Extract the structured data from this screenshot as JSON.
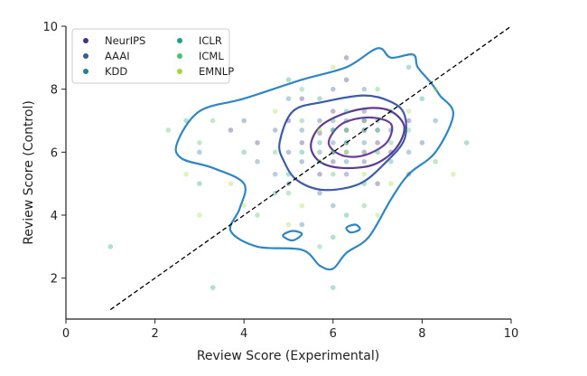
{
  "chart_data": {
    "type": "scatter",
    "xlabel": "Review Score (Experimental)",
    "ylabel": "Review Score (Control)",
    "xlim": [
      0,
      10
    ],
    "ylim": [
      0.7,
      10
    ],
    "xticks": [
      "0",
      "2",
      "4",
      "6",
      "8",
      "10"
    ],
    "yticks": [
      "2",
      "4",
      "6",
      "8",
      "10"
    ],
    "legend_position": "top-left",
    "series": [
      {
        "name": "NeurIPS",
        "color": "#46327e",
        "points": [
          [
            5.3,
            6.3
          ],
          [
            5.7,
            6.6
          ],
          [
            6.0,
            6.0
          ],
          [
            6.3,
            6.7
          ],
          [
            6.7,
            7.0
          ],
          [
            7.0,
            6.3
          ],
          [
            7.3,
            6.0
          ],
          [
            5.0,
            7.0
          ],
          [
            6.0,
            7.3
          ],
          [
            6.7,
            6.0
          ],
          [
            4.3,
            6.3
          ],
          [
            7.7,
            7.0
          ],
          [
            5.7,
            5.3
          ],
          [
            6.3,
            8.3
          ],
          [
            3.7,
            6.7
          ],
          [
            6.3,
            9.0
          ],
          [
            7.0,
            5.0
          ],
          [
            5.3,
            7.7
          ],
          [
            6.0,
            5.7
          ],
          [
            6.7,
            6.7
          ]
        ]
      },
      {
        "name": "AAAI",
        "color": "#365c8d",
        "points": [
          [
            5.0,
            6.0
          ],
          [
            5.7,
            7.0
          ],
          [
            6.3,
            6.3
          ],
          [
            6.0,
            6.7
          ],
          [
            7.0,
            6.7
          ],
          [
            6.7,
            5.7
          ],
          [
            4.7,
            6.7
          ],
          [
            7.3,
            6.7
          ],
          [
            5.3,
            5.7
          ],
          [
            6.3,
            5.3
          ],
          [
            4.0,
            7.0
          ],
          [
            8.0,
            6.3
          ],
          [
            6.0,
            8.0
          ],
          [
            5.7,
            4.7
          ],
          [
            7.7,
            5.3
          ],
          [
            6.7,
            7.3
          ],
          [
            5.0,
            5.0
          ],
          [
            6.3,
            7.0
          ]
        ]
      },
      {
        "name": "KDD",
        "color": "#277f8e",
        "points": [
          [
            5.3,
            6.7
          ],
          [
            6.0,
            6.3
          ],
          [
            6.7,
            6.3
          ],
          [
            5.7,
            6.0
          ],
          [
            7.0,
            7.0
          ],
          [
            6.3,
            5.7
          ],
          [
            4.3,
            5.7
          ],
          [
            7.3,
            7.3
          ],
          [
            5.0,
            7.7
          ],
          [
            6.0,
            4.3
          ],
          [
            6.7,
            8.0
          ],
          [
            3.0,
            6.0
          ],
          [
            8.3,
            7.0
          ],
          [
            5.3,
            3.7
          ],
          [
            6.3,
            6.0
          ],
          [
            7.7,
            6.0
          ],
          [
            6.0,
            7.0
          ],
          [
            4.7,
            5.3
          ]
        ]
      },
      {
        "name": "ICLR",
        "color": "#1fa187",
        "points": [
          [
            6.0,
            6.7
          ],
          [
            6.3,
            6.3
          ],
          [
            6.7,
            6.7
          ],
          [
            5.7,
            6.3
          ],
          [
            7.0,
            6.0
          ],
          [
            5.3,
            6.0
          ],
          [
            6.3,
            7.3
          ],
          [
            5.0,
            5.3
          ],
          [
            7.3,
            5.7
          ],
          [
            4.0,
            6.0
          ],
          [
            6.7,
            5.0
          ],
          [
            5.7,
            7.7
          ],
          [
            8.0,
            7.7
          ],
          [
            4.7,
            4.7
          ],
          [
            6.0,
            3.3
          ],
          [
            3.0,
            5.0
          ],
          [
            1.0,
            3.0
          ],
          [
            3.3,
            1.7
          ],
          [
            9.0,
            6.3
          ],
          [
            7.7,
            8.7
          ],
          [
            6.0,
            1.7
          ],
          [
            5.0,
            8.3
          ],
          [
            2.7,
            7.0
          ],
          [
            6.3,
            4.0
          ]
        ]
      },
      {
        "name": "ICML",
        "color": "#4ac16d",
        "points": [
          [
            6.0,
            6.0
          ],
          [
            6.7,
            7.0
          ],
          [
            6.3,
            6.7
          ],
          [
            5.7,
            5.7
          ],
          [
            7.0,
            6.7
          ],
          [
            5.3,
            7.0
          ],
          [
            6.0,
            5.3
          ],
          [
            7.3,
            6.3
          ],
          [
            4.7,
            6.0
          ],
          [
            5.0,
            4.7
          ],
          [
            7.7,
            6.7
          ],
          [
            3.3,
            7.0
          ],
          [
            5.7,
            3.0
          ],
          [
            6.7,
            4.3
          ],
          [
            4.3,
            4.0
          ],
          [
            3.0,
            6.3
          ],
          [
            7.0,
            8.0
          ],
          [
            2.3,
            6.7
          ],
          [
            5.3,
            8.0
          ],
          [
            8.3,
            5.7
          ]
        ]
      },
      {
        "name": "EMNLP",
        "color": "#a0da39",
        "points": [
          [
            6.3,
            6.0
          ],
          [
            5.7,
            6.7
          ],
          [
            6.7,
            5.3
          ],
          [
            4.0,
            4.3
          ],
          [
            3.7,
            5.0
          ],
          [
            7.3,
            5.0
          ],
          [
            5.0,
            3.7
          ],
          [
            8.7,
            5.3
          ],
          [
            3.0,
            4.0
          ],
          [
            6.0,
            8.7
          ],
          [
            4.7,
            7.3
          ],
          [
            7.0,
            4.0
          ],
          [
            2.7,
            5.3
          ],
          [
            5.3,
            4.3
          ],
          [
            7.7,
            7.3
          ],
          [
            8.3,
            8.0
          ]
        ]
      }
    ],
    "reference_line": {
      "x": [
        1,
        10
      ],
      "y": [
        1,
        10
      ],
      "style": "dashed",
      "color": "#000000"
    },
    "contours": [
      {
        "level": "outer",
        "color": "#2f86c4",
        "points": [
          [
            2.5,
            6.3
          ],
          [
            3.0,
            7.3
          ],
          [
            4.0,
            7.7
          ],
          [
            5.3,
            8.3
          ],
          [
            6.3,
            8.7
          ],
          [
            7.0,
            9.3
          ],
          [
            7.3,
            9.0
          ],
          [
            7.8,
            9.1
          ],
          [
            7.9,
            8.7
          ],
          [
            8.2,
            8.2
          ],
          [
            8.4,
            7.8
          ],
          [
            8.7,
            7.2
          ],
          [
            8.3,
            6.0
          ],
          [
            7.7,
            5.3
          ],
          [
            7.3,
            4.5
          ],
          [
            6.8,
            3.3
          ],
          [
            6.3,
            2.8
          ],
          [
            6.0,
            2.3
          ],
          [
            5.7,
            2.4
          ],
          [
            5.3,
            2.9
          ],
          [
            4.3,
            3.0
          ],
          [
            3.7,
            3.5
          ],
          [
            3.9,
            4.2
          ],
          [
            4.0,
            5.0
          ],
          [
            3.3,
            5.5
          ],
          [
            2.6,
            5.8
          ]
        ]
      },
      {
        "level": "middle",
        "color": "#3d5ba9",
        "points": [
          [
            4.8,
            6.3
          ],
          [
            5.1,
            7.3
          ],
          [
            5.8,
            7.6
          ],
          [
            6.7,
            7.8
          ],
          [
            7.3,
            7.6
          ],
          [
            7.6,
            7.2
          ],
          [
            7.6,
            6.4
          ],
          [
            7.2,
            5.7
          ],
          [
            6.6,
            5.0
          ],
          [
            5.8,
            4.8
          ],
          [
            5.2,
            5.1
          ],
          [
            4.9,
            5.7
          ]
        ]
      },
      {
        "level": "inner",
        "color": "#5c3a92",
        "points": [
          [
            5.5,
            6.2
          ],
          [
            5.7,
            6.8
          ],
          [
            6.2,
            7.2
          ],
          [
            6.8,
            7.4
          ],
          [
            7.3,
            7.3
          ],
          [
            7.6,
            6.8
          ],
          [
            7.4,
            6.1
          ],
          [
            6.9,
            5.6
          ],
          [
            6.2,
            5.5
          ],
          [
            5.7,
            5.7
          ]
        ]
      },
      {
        "level": "core",
        "color": "#6a3d9a",
        "points": [
          [
            5.9,
            6.3
          ],
          [
            6.2,
            6.9
          ],
          [
            6.8,
            7.1
          ],
          [
            7.3,
            6.9
          ],
          [
            7.2,
            6.3
          ],
          [
            6.7,
            5.9
          ],
          [
            6.2,
            5.9
          ]
        ]
      },
      {
        "level": "island",
        "color": "#2f86c4",
        "points": [
          [
            4.9,
            3.4
          ],
          [
            5.1,
            3.5
          ],
          [
            5.3,
            3.4
          ],
          [
            5.1,
            3.2
          ],
          [
            4.9,
            3.3
          ]
        ]
      },
      {
        "level": "island",
        "color": "#2f86c4",
        "points": [
          [
            6.3,
            3.6
          ],
          [
            6.5,
            3.7
          ],
          [
            6.6,
            3.55
          ],
          [
            6.4,
            3.45
          ]
        ]
      }
    ]
  }
}
